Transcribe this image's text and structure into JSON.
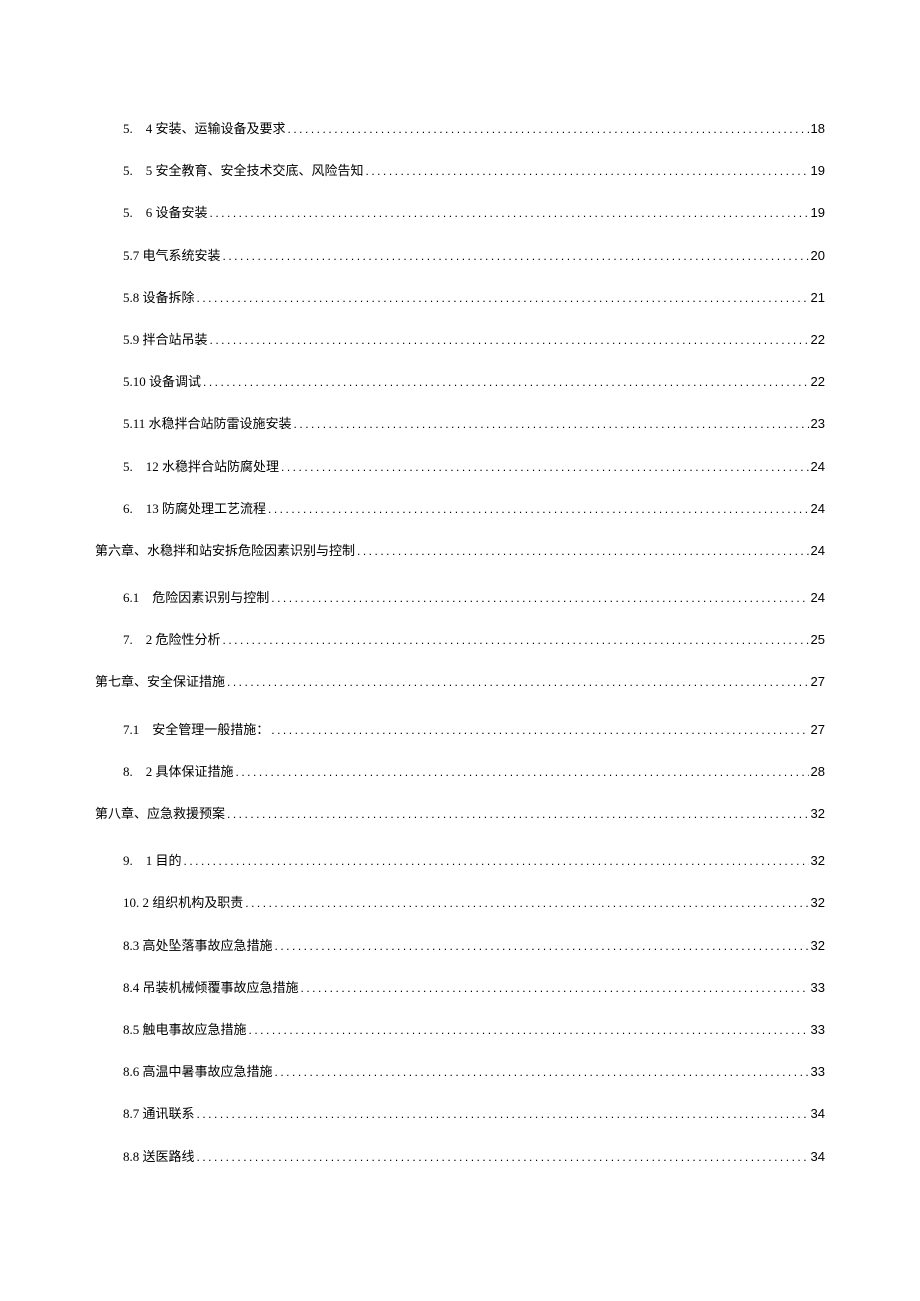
{
  "colors": {
    "background": "#ffffff",
    "text": "#000000"
  },
  "typography": {
    "body_fontsize": 13,
    "font_family": "SimSun"
  },
  "toc": {
    "entries": [
      {
        "level": 2,
        "label": "5.　4 安装、运输设备及要求",
        "page": "18"
      },
      {
        "level": 2,
        "label": "5.　5 安全教育、安全技术交底、风险告知",
        "page": "19"
      },
      {
        "level": 2,
        "label": "5.　6 设备安装",
        "page": "19"
      },
      {
        "level": 2,
        "label": "5.7 电气系统安装",
        "page": "20"
      },
      {
        "level": 2,
        "label": "5.8 设备拆除",
        "page": "21"
      },
      {
        "level": 2,
        "label": "5.9 拌合站吊装",
        "page": "22"
      },
      {
        "level": 2,
        "label": "5.10 设备调试",
        "page": "22"
      },
      {
        "level": 2,
        "label": "5.11 水稳拌合站防雷设施安装",
        "page": "23"
      },
      {
        "level": 2,
        "label": "5.　12 水稳拌合站防腐处理",
        "page": "24"
      },
      {
        "level": 2,
        "label": "6.　13 防腐处理工艺流程",
        "page": "24"
      },
      {
        "level": 1,
        "label": "第六章、水稳拌和站安拆危险因素识别与控制",
        "page": "24"
      },
      {
        "level": 2,
        "label": "6.1　危险因素识别与控制",
        "page": "24"
      },
      {
        "level": 2,
        "label": "7.　2 危险性分析",
        "page": "25"
      },
      {
        "level": 1,
        "label": "第七章、安全保证措施",
        "page": "27"
      },
      {
        "level": 2,
        "label": "7.1　安全管理一般措施：",
        "page": "27"
      },
      {
        "level": 2,
        "label": "8.　2 具体保证措施",
        "page": "28"
      },
      {
        "level": 1,
        "label": "第八章、应急救援预案",
        "page": "32"
      },
      {
        "level": 2,
        "label": "9.　1 目的",
        "page": "32"
      },
      {
        "level": 2,
        "label": "10. 2 组织机构及职责",
        "page": "32"
      },
      {
        "level": 2,
        "label": "8.3 高处坠落事故应急措施",
        "page": "32"
      },
      {
        "level": 2,
        "label": "8.4 吊装机械倾覆事故应急措施",
        "page": "33"
      },
      {
        "level": 2,
        "label": "8.5 触电事故应急措施",
        "page": "33"
      },
      {
        "level": 2,
        "label": "8.6 高温中暑事故应急措施",
        "page": "33"
      },
      {
        "level": 2,
        "label": "8.7 通讯联系",
        "page": "34"
      },
      {
        "level": 2,
        "label": "8.8 送医路线",
        "page": "34"
      }
    ]
  }
}
